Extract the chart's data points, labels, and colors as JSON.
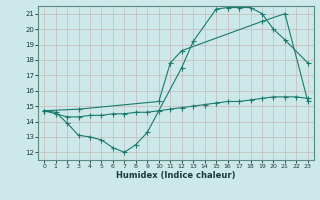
{
  "title": "",
  "xlabel": "Humidex (Indice chaleur)",
  "bg_color": "#cce8e8",
  "grid_color": "#aacccc",
  "line_color": "#1a7a6e",
  "xlim": [
    -0.5,
    23.5
  ],
  "ylim": [
    11.5,
    21.5
  ],
  "xticks": [
    0,
    1,
    2,
    3,
    4,
    5,
    6,
    7,
    8,
    9,
    10,
    11,
    12,
    13,
    14,
    15,
    16,
    17,
    18,
    19,
    20,
    21,
    22,
    23
  ],
  "yticks": [
    12,
    13,
    14,
    15,
    16,
    17,
    18,
    19,
    20,
    21
  ],
  "line1_x": [
    0,
    1,
    2,
    3,
    4,
    5,
    6,
    7,
    8,
    9,
    12,
    13,
    15,
    16,
    17,
    18,
    19,
    20,
    21,
    23
  ],
  "line1_y": [
    14.7,
    14.6,
    13.9,
    13.1,
    13.0,
    12.8,
    12.3,
    12.0,
    12.5,
    13.3,
    17.5,
    19.2,
    21.3,
    21.4,
    21.4,
    21.4,
    21.0,
    20.0,
    19.3,
    17.8
  ],
  "line2_x": [
    0,
    3,
    10,
    11,
    12,
    19,
    21,
    23
  ],
  "line2_y": [
    14.7,
    14.8,
    15.3,
    17.8,
    18.6,
    20.5,
    21.0,
    15.3
  ],
  "line3_x": [
    0,
    1,
    2,
    3,
    4,
    5,
    6,
    7,
    8,
    9,
    10,
    11,
    12,
    13,
    14,
    15,
    16,
    17,
    18,
    19,
    20,
    21,
    22,
    23
  ],
  "line3_y": [
    14.7,
    14.5,
    14.3,
    14.3,
    14.4,
    14.4,
    14.5,
    14.5,
    14.6,
    14.6,
    14.7,
    14.8,
    14.9,
    15.0,
    15.1,
    15.2,
    15.3,
    15.3,
    15.4,
    15.5,
    15.6,
    15.6,
    15.6,
    15.5
  ]
}
